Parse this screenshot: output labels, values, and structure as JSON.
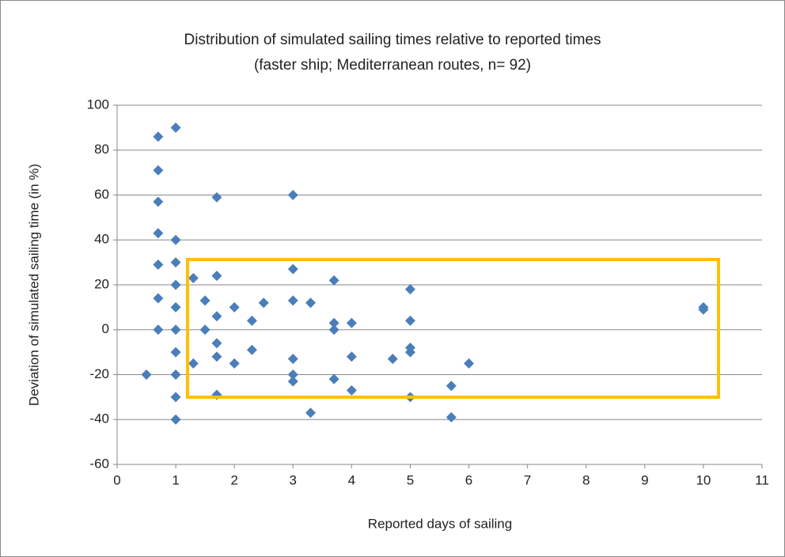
{
  "chart_data": {
    "type": "scatter",
    "title": "Distribution of simulated sailing times relative to reported times",
    "subtitle": "(faster ship; Mediterranean routes, n= 92)",
    "x_label": "Reported days of sailing",
    "y_label": "Deviation of simulated sailing time (in %)",
    "series": [
      {
        "color": "#4a7ebb",
        "x": [
          0.5,
          0.7,
          0.7,
          0.7,
          0.7,
          0.7,
          0.7,
          0.7,
          1,
          1,
          1,
          1,
          1,
          1,
          1,
          1,
          1,
          1,
          1.3,
          1.3,
          1.5,
          1.5,
          1.7,
          1.7,
          1.7,
          1.7,
          1.7,
          1.7,
          2,
          2,
          2.3,
          2.3,
          2.5,
          3,
          3,
          3,
          3,
          3,
          3,
          3.3,
          3.3,
          3.7,
          3.7,
          3.7,
          3.7,
          4,
          4,
          4,
          4.7,
          5,
          5,
          5,
          5,
          5,
          5.7,
          5.7,
          6,
          10,
          10
        ],
        "values": [
          -20,
          86,
          71,
          57,
          43,
          29,
          14,
          0,
          90,
          40,
          30,
          20,
          10,
          0,
          -10,
          -20,
          -30,
          -40,
          23,
          -15,
          13,
          0,
          59,
          24,
          6,
          -6,
          -12,
          -29,
          10,
          -15,
          4,
          -9,
          12,
          60,
          27,
          13,
          -13,
          -20,
          -23,
          12,
          -37,
          22,
          3,
          0,
          -22,
          3,
          -12,
          -27,
          -13,
          18,
          4,
          -8,
          -10,
          -30,
          -25,
          -39,
          -15,
          10,
          9
        ]
      }
    ],
    "xlim": [
      0,
      11
    ],
    "xticks": [
      0,
      1,
      2,
      3,
      4,
      5,
      6,
      7,
      8,
      9,
      10,
      11
    ],
    "ylim": [
      -60,
      100
    ],
    "yticks": [
      -60,
      -40,
      -20,
      0,
      20,
      40,
      60,
      80,
      100
    ],
    "grid": true
  }
}
